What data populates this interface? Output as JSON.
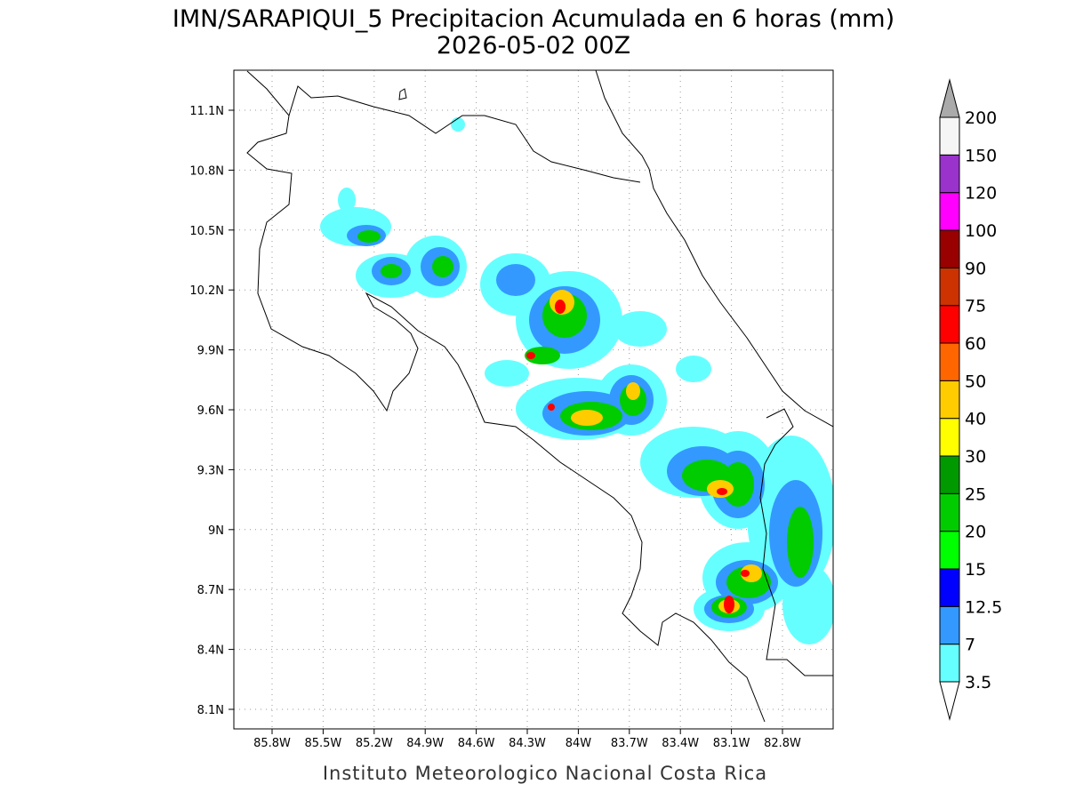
{
  "title": "IMN/SARAPIQUI_5 Precipitacion Acumulada en 6 horas (mm)",
  "subtitle": "2026-05-02 00Z",
  "credit": "Instituto Meteorologico Nacional Costa Rica",
  "lon_ticks": [
    "85.8W",
    "85.5W",
    "85.2W",
    "84.9W",
    "84.6W",
    "84.3W",
    "84W",
    "83.7W",
    "83.4W",
    "83.1W",
    "82.8W"
  ],
  "lat_ticks": [
    "11.1N",
    "10.8N",
    "10.5N",
    "10.2N",
    "9.9N",
    "9.6N",
    "9.3N",
    "9N",
    "8.7N",
    "8.4N",
    "8.1N"
  ],
  "colorbar": {
    "levels": [
      "3.5",
      "7",
      "12.5",
      "15",
      "20",
      "25",
      "30",
      "40",
      "50",
      "60",
      "75",
      "90",
      "100",
      "120",
      "150",
      "200"
    ],
    "colors": [
      "#66ffff",
      "#3399ff",
      "#0000ff",
      "#00ff00",
      "#00cc00",
      "#009900",
      "#ffff00",
      "#ffcc00",
      "#ff6600",
      "#ff0000",
      "#cc3300",
      "#990000",
      "#ff00ff",
      "#9933cc",
      "#f5f5f5"
    ],
    "below_color": "#ffffff",
    "above_color": "#aaaaaa"
  }
}
